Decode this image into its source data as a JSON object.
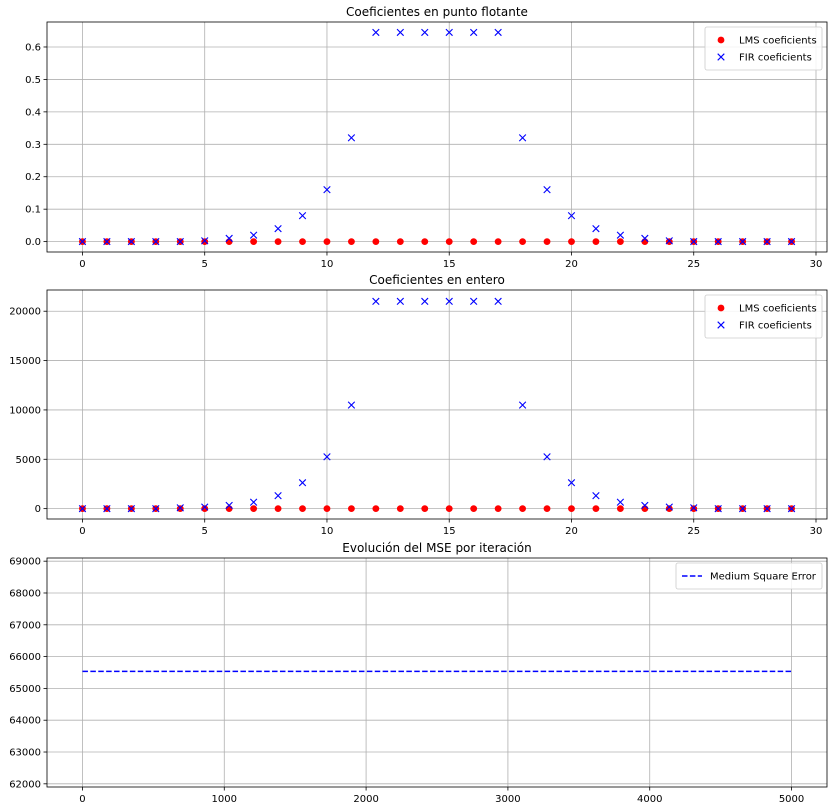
{
  "chart_data": [
    {
      "type": "scatter",
      "title": "Coeficientes en punto flotante",
      "xlabel": "",
      "ylabel": "",
      "xlim": [
        -1.45,
        30.45
      ],
      "ylim": [
        -0.032,
        0.677
      ],
      "x_ticks": [
        0,
        5,
        10,
        15,
        20,
        25,
        30
      ],
      "x_tick_labels": [
        "0",
        "5",
        "10",
        "15",
        "20",
        "25",
        "30"
      ],
      "y_ticks": [
        0.0,
        0.1,
        0.2,
        0.3,
        0.4,
        0.5,
        0.6
      ],
      "y_tick_labels": [
        "0.0",
        "0.1",
        "0.2",
        "0.3",
        "0.4",
        "0.5",
        "0.6"
      ],
      "grid": true,
      "legend_position": "upper right",
      "series": [
        {
          "name": "LMS coeficients",
          "marker": "circle",
          "color": "#ff0000",
          "x": [
            0,
            1,
            2,
            3,
            4,
            5,
            6,
            7,
            8,
            9,
            10,
            11,
            12,
            13,
            14,
            15,
            16,
            17,
            18,
            19,
            20,
            21,
            22,
            23,
            24,
            25,
            26,
            27,
            28,
            29
          ],
          "values": [
            0,
            0,
            0,
            0,
            0,
            0,
            0,
            0,
            0,
            0,
            0,
            0,
            0,
            0,
            0,
            0,
            0,
            0,
            0,
            0,
            0,
            0,
            0,
            0,
            0,
            0,
            0,
            0,
            0,
            0
          ]
        },
        {
          "name": "FIR coeficients",
          "marker": "x",
          "color": "#0000ff",
          "x": [
            0,
            1,
            2,
            3,
            4,
            5,
            6,
            7,
            8,
            9,
            10,
            11,
            12,
            13,
            14,
            15,
            16,
            17,
            18,
            19,
            20,
            21,
            22,
            23,
            24,
            25,
            26,
            27,
            28,
            29
          ],
          "values": [
            0,
            0,
            0,
            0,
            0,
            0.0025,
            0.01,
            0.02,
            0.04,
            0.08,
            0.16,
            0.32,
            0.645,
            0.645,
            0.645,
            0.645,
            0.645,
            0.645,
            0.32,
            0.16,
            0.08,
            0.04,
            0.02,
            0.01,
            0.0025,
            0,
            0,
            0,
            0,
            0
          ]
        }
      ]
    },
    {
      "type": "scatter",
      "title": "Coeficientes en entero",
      "xlabel": "",
      "ylabel": "",
      "xlim": [
        -1.45,
        30.45
      ],
      "ylim": [
        -1050,
        22150
      ],
      "x_ticks": [
        0,
        5,
        10,
        15,
        20,
        25,
        30
      ],
      "x_tick_labels": [
        "0",
        "5",
        "10",
        "15",
        "20",
        "25",
        "30"
      ],
      "y_ticks": [
        0,
        5000,
        10000,
        15000,
        20000
      ],
      "y_tick_labels": [
        "0",
        "5000",
        "10000",
        "15000",
        "20000"
      ],
      "grid": true,
      "legend_position": "upper right",
      "series": [
        {
          "name": "LMS coeficients",
          "marker": "circle",
          "color": "#ff0000",
          "x": [
            0,
            1,
            2,
            3,
            4,
            5,
            6,
            7,
            8,
            9,
            10,
            11,
            12,
            13,
            14,
            15,
            16,
            17,
            18,
            19,
            20,
            21,
            22,
            23,
            24,
            25,
            26,
            27,
            28,
            29
          ],
          "values": [
            0,
            0,
            0,
            0,
            0,
            0,
            0,
            0,
            0,
            0,
            0,
            0,
            0,
            0,
            0,
            0,
            0,
            0,
            0,
            0,
            0,
            0,
            0,
            0,
            0,
            0,
            0,
            0,
            0,
            0
          ]
        },
        {
          "name": "FIR coeficients",
          "marker": "x",
          "color": "#0000ff",
          "x": [
            0,
            1,
            2,
            3,
            4,
            5,
            6,
            7,
            8,
            9,
            10,
            11,
            12,
            13,
            14,
            15,
            16,
            17,
            18,
            19,
            20,
            21,
            22,
            23,
            24,
            25,
            26,
            27,
            28,
            29
          ],
          "values": [
            0,
            0,
            0,
            0,
            82,
            164,
            328,
            656,
            1312,
            2624,
            5248,
            10496,
            21000,
            21000,
            21000,
            21000,
            21000,
            21000,
            10496,
            5248,
            2624,
            1312,
            656,
            328,
            164,
            82,
            0,
            0,
            0,
            0
          ]
        }
      ]
    },
    {
      "type": "line",
      "title": "Evolución del MSE por iteración",
      "xlabel": "",
      "ylabel": "",
      "xlim": [
        -250,
        5250
      ],
      "ylim": [
        61900,
        69100
      ],
      "x_ticks": [
        0,
        1000,
        2000,
        3000,
        4000,
        5000
      ],
      "x_tick_labels": [
        "0",
        "1000",
        "2000",
        "3000",
        "4000",
        "5000"
      ],
      "y_ticks": [
        62000,
        63000,
        64000,
        65000,
        66000,
        67000,
        68000,
        69000
      ],
      "y_tick_labels": [
        "62000",
        "63000",
        "64000",
        "65000",
        "66000",
        "67000",
        "68000",
        "69000"
      ],
      "grid": true,
      "legend_position": "upper right",
      "series": [
        {
          "name": "Medium Square Error",
          "line_style": "dashed",
          "color": "#0000ff",
          "x": [
            0,
            5000
          ],
          "values": [
            65536,
            65536
          ]
        }
      ]
    }
  ]
}
